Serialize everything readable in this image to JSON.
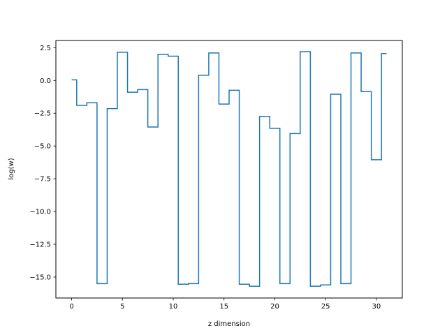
{
  "chart_data": {
    "type": "line",
    "drawstyle": "steps-mid",
    "title": "",
    "xlabel": "z dimension",
    "ylabel": "log(w)",
    "xlim": [
      -1.55,
      32.55
    ],
    "ylim": [
      -16.6,
      3.05
    ],
    "xticks": [
      0,
      5,
      10,
      15,
      20,
      25,
      30
    ],
    "yticks": [
      2.5,
      0.0,
      -2.5,
      -5.0,
      -7.5,
      -10.0,
      -12.5,
      -15.0
    ],
    "ytick_labels": [
      "2.5",
      "0.0",
      "−2.5",
      "−5.0",
      "−7.5",
      "−10.0",
      "−12.5",
      "−15.0"
    ],
    "grid": false,
    "color": "#1f77b4",
    "series": [
      {
        "x": [
          0,
          1,
          2,
          3,
          4,
          5,
          6,
          7,
          8,
          9,
          10,
          11,
          12,
          13,
          14,
          15,
          16,
          17,
          18,
          19,
          20,
          21,
          22,
          23,
          24,
          25,
          26,
          27,
          28,
          29,
          30,
          31
        ],
        "values": [
          0.05,
          -1.9,
          -1.7,
          -15.5,
          -2.15,
          2.15,
          -0.9,
          -0.7,
          -3.55,
          2.0,
          1.85,
          -15.55,
          -15.5,
          0.4,
          2.1,
          -1.8,
          -0.75,
          -15.55,
          -15.7,
          -2.75,
          -3.65,
          -15.5,
          -4.05,
          2.2,
          -15.7,
          -15.6,
          -1.05,
          -15.5,
          2.1,
          -0.85,
          -6.05,
          2.05
        ]
      }
    ]
  }
}
